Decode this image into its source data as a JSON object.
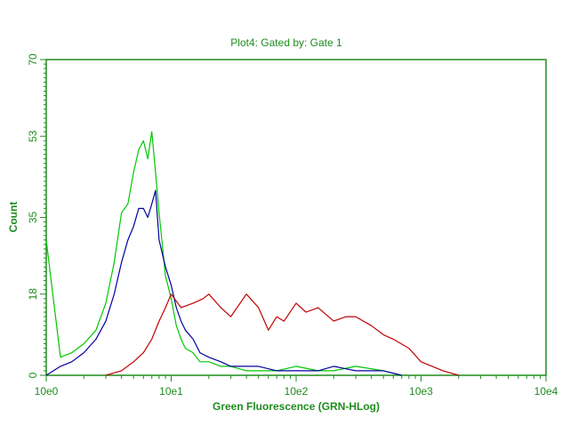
{
  "chart_data": {
    "type": "line",
    "title": "Plot4:  Gated by: Gate 1",
    "xlabel": "Green Fluorescence (GRN-HLog)",
    "ylabel": "Count",
    "x_scale": "log",
    "xlim": [
      1,
      10000
    ],
    "ylim": [
      0,
      70
    ],
    "x_tick_labels": [
      "10e0",
      "10e1",
      "10e2",
      "10e3",
      "10e4"
    ],
    "x_tick_values": [
      1,
      10,
      100,
      1000,
      10000
    ],
    "y_tick_labels": [
      "0",
      "18",
      "35",
      "53",
      "70"
    ],
    "y_tick_values": [
      0,
      18,
      35,
      53,
      70
    ],
    "grid": false,
    "legend": null,
    "series": [
      {
        "color": "#00c800",
        "x": [
          1.0,
          1.3,
          1.6,
          2.0,
          2.5,
          3.0,
          3.5,
          4.0,
          4.5,
          5.0,
          5.5,
          6.0,
          6.5,
          7.0,
          7.5,
          8.0,
          9.0,
          10.0,
          11.0,
          12.0,
          13.0,
          15.0,
          17.0,
          20.0,
          25.0,
          30.0,
          40.0,
          50.0,
          70.0,
          100.0,
          150.0,
          200.0,
          300.0,
          500.0,
          700.0
        ],
        "y": [
          30,
          4,
          5,
          7,
          10,
          16,
          25,
          36,
          38,
          45,
          50,
          52,
          48,
          54,
          45,
          36,
          22,
          17,
          11,
          8,
          6,
          5,
          3,
          3,
          2,
          2,
          1,
          1,
          1,
          2,
          1,
          1,
          2,
          1,
          0
        ]
      },
      {
        "color": "#0000a0",
        "x": [
          1.0,
          1.3,
          1.6,
          2.0,
          2.5,
          3.0,
          3.5,
          4.0,
          4.5,
          5.0,
          5.5,
          6.0,
          6.5,
          7.0,
          7.5,
          8.0,
          9.0,
          10.0,
          11.0,
          12.0,
          13.0,
          15.0,
          17.0,
          20.0,
          25.0,
          30.0,
          40.0,
          50.0,
          70.0,
          100.0,
          150.0,
          200.0,
          300.0,
          500.0,
          700.0
        ],
        "y": [
          0,
          2,
          3,
          5,
          8,
          12,
          18,
          25,
          30,
          33,
          37,
          37,
          35,
          38,
          41,
          30,
          24,
          20,
          15,
          12,
          10,
          8,
          5,
          4,
          3,
          2,
          2,
          2,
          1,
          1,
          1,
          2,
          1,
          1,
          0
        ]
      },
      {
        "color": "#c00000",
        "x": [
          3.0,
          4.0,
          5.0,
          6.0,
          7.0,
          8.0,
          9.0,
          10.0,
          12.0,
          15.0,
          18.0,
          20.0,
          25.0,
          30.0,
          40.0,
          50.0,
          60.0,
          70.0,
          80.0,
          100.0,
          120.0,
          150.0,
          200.0,
          250.0,
          300.0,
          400.0,
          500.0,
          600.0,
          800.0,
          1000.0,
          1500.0,
          2000.0
        ],
        "y": [
          0,
          1,
          3,
          5,
          8,
          12,
          15,
          18,
          15,
          16,
          17,
          18,
          15,
          13,
          18,
          15,
          10,
          13,
          12,
          16,
          14,
          15,
          12,
          13,
          13,
          11,
          9,
          8,
          6,
          3,
          1,
          0
        ]
      }
    ]
  }
}
